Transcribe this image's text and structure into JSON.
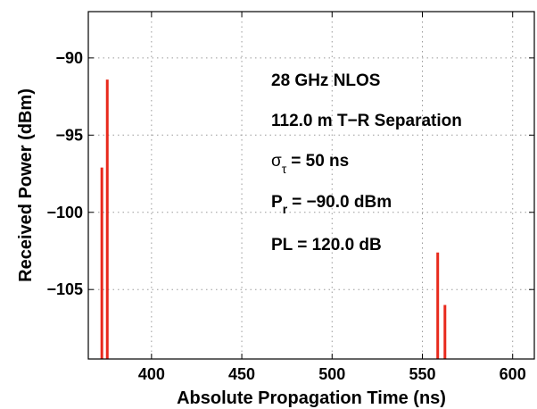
{
  "chart_data": {
    "type": "bar",
    "xlabel": "Absolute Propagation Time (ns)",
    "ylabel": "Received Power (dBm)",
    "xlim": [
      365,
      612
    ],
    "ylim": [
      -109.5,
      -87.0
    ],
    "baseline": -109.5,
    "xticks": [
      400,
      450,
      500,
      550,
      600
    ],
    "yticks": [
      -90,
      -95,
      -100,
      -105
    ],
    "grid": true,
    "bar_color": "#e8291c",
    "series": [
      {
        "x": [
          372.5,
          375.5,
          558.5,
          562.5
        ],
        "values": [
          -97.1,
          -91.4,
          -102.6,
          -106.0
        ]
      }
    ],
    "annotations": {
      "line1": "28 GHz NLOS",
      "line2": "112.0 m T−R Separation",
      "line3_sym": "σ",
      "line3_sub": "τ",
      "line3_rest": "= 50 ns",
      "line4_sym": "P",
      "line4_sub": "r",
      "line4_rest": "= −90.0 dBm",
      "line5": "PL = 120.0 dB"
    }
  }
}
